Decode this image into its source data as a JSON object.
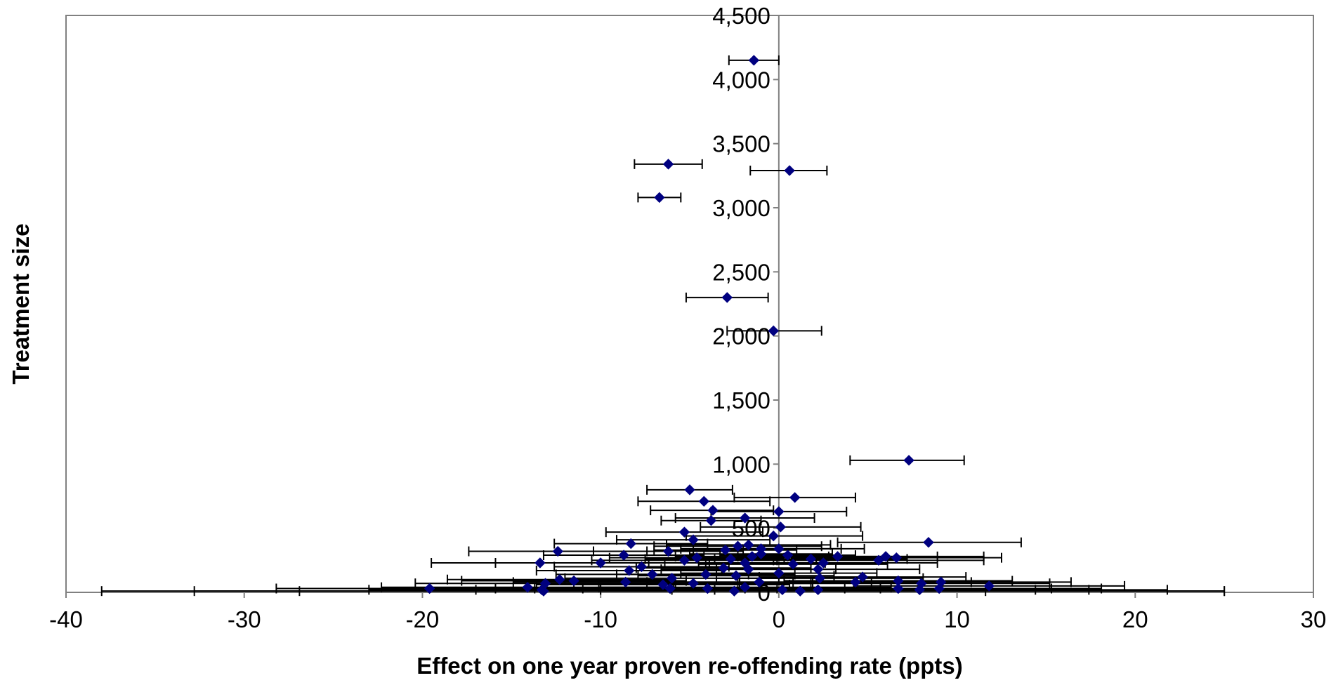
{
  "chart_data": {
    "type": "scatter",
    "xlabel": "Effect on one year proven re-offending rate (ppts)",
    "ylabel": "Treatment size",
    "xlim": [
      -40,
      30
    ],
    "ylim": [
      0,
      4500
    ],
    "x_ticks": [
      -40,
      -30,
      -20,
      -10,
      0,
      10,
      20,
      30
    ],
    "x_tick_labels": [
      "-40",
      "-30",
      "-20",
      "-10",
      "0",
      "10",
      "20",
      "30"
    ],
    "y_ticks": [
      0,
      500,
      1000,
      1500,
      2000,
      2500,
      3000,
      3500,
      4000,
      4500
    ],
    "y_tick_labels": [
      "0",
      "500",
      "1,000",
      "1,500",
      "2,000",
      "2,500",
      "3,000",
      "3,500",
      "4,000",
      "4,500"
    ],
    "grid": false,
    "legend": "none",
    "colors": {
      "marker": "#000080",
      "error_bar": "#000000",
      "axis": "#808080",
      "frame": "#808080"
    },
    "series": [
      {
        "marker": "diamond",
        "points": [
          {
            "x": -1.4,
            "y": 4150,
            "lo": -2.8,
            "hi": 0.0
          },
          {
            "x": -6.2,
            "y": 3340,
            "lo": -8.1,
            "hi": -4.3
          },
          {
            "x": 0.6,
            "y": 3290,
            "lo": -1.6,
            "hi": 2.7
          },
          {
            "x": -6.7,
            "y": 3080,
            "lo": -7.9,
            "hi": -5.5
          },
          {
            "x": -2.9,
            "y": 2300,
            "lo": -5.2,
            "hi": -0.6
          },
          {
            "x": -0.3,
            "y": 2040,
            "lo": -2.9,
            "hi": 2.4
          },
          {
            "x": 7.3,
            "y": 1030,
            "lo": 4.0,
            "hi": 10.4
          },
          {
            "x": -5.0,
            "y": 800,
            "lo": -7.4,
            "hi": -2.6
          },
          {
            "x": 0.9,
            "y": 740,
            "lo": -2.5,
            "hi": 4.3
          },
          {
            "x": -4.2,
            "y": 710,
            "lo": -7.9,
            "hi": -0.5
          },
          {
            "x": -3.7,
            "y": 640,
            "lo": -7.2,
            "hi": -0.3
          },
          {
            "x": 0.0,
            "y": 630,
            "lo": -3.8,
            "hi": 3.8
          },
          {
            "x": -1.9,
            "y": 580,
            "lo": -5.8,
            "hi": 2.0
          },
          {
            "x": -3.8,
            "y": 560,
            "lo": -6.6,
            "hi": -1.0
          },
          {
            "x": 0.1,
            "y": 510,
            "lo": -4.4,
            "hi": 4.6
          },
          {
            "x": -5.3,
            "y": 470,
            "lo": -9.7,
            "hi": -0.9
          },
          {
            "x": -0.3,
            "y": 440,
            "lo": -5.2,
            "hi": 4.7
          },
          {
            "x": -4.8,
            "y": 410,
            "lo": -9.1,
            "hi": -0.5
          },
          {
            "x": 8.4,
            "y": 390,
            "lo": 3.3,
            "hi": 13.6
          },
          {
            "x": -8.3,
            "y": 380,
            "lo": -12.6,
            "hi": -4.0
          },
          {
            "x": -1.7,
            "y": 370,
            "lo": -6.3,
            "hi": 2.9
          },
          {
            "x": -2.3,
            "y": 360,
            "lo": -7.0,
            "hi": 2.4
          },
          {
            "x": -1.0,
            "y": 340,
            "lo": -5.5,
            "hi": 3.5
          },
          {
            "x": 0.0,
            "y": 340,
            "lo": -4.8,
            "hi": 4.8
          },
          {
            "x": -3.0,
            "y": 330,
            "lo": -7.0,
            "hi": 1.0
          },
          {
            "x": -12.4,
            "y": 320,
            "lo": -17.4,
            "hi": -7.4
          },
          {
            "x": -6.2,
            "y": 320,
            "lo": -10.4,
            "hi": -2.0
          },
          {
            "x": -1.0,
            "y": 300,
            "lo": -5.0,
            "hi": 3.0
          },
          {
            "x": -8.7,
            "y": 290,
            "lo": -13.2,
            "hi": -4.2
          },
          {
            "x": 0.5,
            "y": 290,
            "lo": -3.3,
            "hi": 4.3
          },
          {
            "x": -1.5,
            "y": 280,
            "lo": -5.8,
            "hi": 2.8
          },
          {
            "x": 3.3,
            "y": 280,
            "lo": -2.3,
            "hi": 8.9
          },
          {
            "x": 6.0,
            "y": 280,
            "lo": 0.5,
            "hi": 11.5
          },
          {
            "x": 6.6,
            "y": 270,
            "lo": 0.7,
            "hi": 12.5
          },
          {
            "x": -4.6,
            "y": 270,
            "lo": -9.5,
            "hi": 0.3
          },
          {
            "x": 1.8,
            "y": 260,
            "lo": -3.6,
            "hi": 7.2
          },
          {
            "x": -2.7,
            "y": 260,
            "lo": -7.5,
            "hi": 2.1
          },
          {
            "x": 5.6,
            "y": 250,
            "lo": -0.3,
            "hi": 11.5
          },
          {
            "x": -5.3,
            "y": 250,
            "lo": -10.5,
            "hi": -0.1
          },
          {
            "x": -13.4,
            "y": 230,
            "lo": -19.5,
            "hi": -7.3
          },
          {
            "x": -10.0,
            "y": 230,
            "lo": -15.9,
            "hi": -4.1
          },
          {
            "x": -1.9,
            "y": 230,
            "lo": -6.4,
            "hi": 2.6
          },
          {
            "x": 2.5,
            "y": 230,
            "lo": -3.9,
            "hi": 8.9
          },
          {
            "x": 0.8,
            "y": 220,
            "lo": -4.5,
            "hi": 6.1
          },
          {
            "x": -7.7,
            "y": 200,
            "lo": -12.6,
            "hi": -2.8
          },
          {
            "x": -3.1,
            "y": 190,
            "lo": -8.0,
            "hi": 1.8
          },
          {
            "x": -1.7,
            "y": 180,
            "lo": -6.6,
            "hi": 3.2
          },
          {
            "x": 2.2,
            "y": 180,
            "lo": -3.5,
            "hi": 7.9
          },
          {
            "x": -8.4,
            "y": 170,
            "lo": -13.6,
            "hi": -3.2
          },
          {
            "x": 0.0,
            "y": 150,
            "lo": -5.5,
            "hi": 5.5
          },
          {
            "x": -7.1,
            "y": 140,
            "lo": -12.5,
            "hi": -1.7
          },
          {
            "x": -4.1,
            "y": 140,
            "lo": -9.1,
            "hi": 0.9
          },
          {
            "x": -2.4,
            "y": 130,
            "lo": -7.9,
            "hi": 3.1
          },
          {
            "x": 4.7,
            "y": 120,
            "lo": -1.1,
            "hi": 10.5
          },
          {
            "x": -6.0,
            "y": 110,
            "lo": -12.0,
            "hi": 0.0
          },
          {
            "x": 2.3,
            "y": 110,
            "lo": -3.5,
            "hi": 8.1
          },
          {
            "x": -12.3,
            "y": 100,
            "lo": -18.6,
            "hi": -6.0
          },
          {
            "x": -11.5,
            "y": 90,
            "lo": -17.8,
            "hi": -5.2
          },
          {
            "x": 6.7,
            "y": 90,
            "lo": 0.3,
            "hi": 13.1
          },
          {
            "x": -8.6,
            "y": 80,
            "lo": -14.9,
            "hi": -2.3
          },
          {
            "x": 4.3,
            "y": 80,
            "lo": -2.2,
            "hi": 10.8
          },
          {
            "x": -1.1,
            "y": 80,
            "lo": -7.4,
            "hi": 5.2
          },
          {
            "x": 9.1,
            "y": 80,
            "lo": 1.8,
            "hi": 16.4
          },
          {
            "x": -13.1,
            "y": 70,
            "lo": -20.4,
            "hi": -5.8
          },
          {
            "x": -4.8,
            "y": 70,
            "lo": -11.5,
            "hi": 1.9
          },
          {
            "x": 8.0,
            "y": 70,
            "lo": 0.8,
            "hi": 15.2
          },
          {
            "x": -6.5,
            "y": 60,
            "lo": -13.6,
            "hi": 0.6
          },
          {
            "x": 11.8,
            "y": 50,
            "lo": 4.2,
            "hi": 19.4
          },
          {
            "x": -14.1,
            "y": 40,
            "lo": -22.3,
            "hi": -5.9
          },
          {
            "x": -1.9,
            "y": 40,
            "lo": -10.1,
            "hi": 6.3
          },
          {
            "x": 6.7,
            "y": 30,
            "lo": -1.9,
            "hi": 15.3
          },
          {
            "x": -19.6,
            "y": 30,
            "lo": -28.2,
            "hi": -11.0
          },
          {
            "x": 9.0,
            "y": 30,
            "lo": -0.1,
            "hi": 18.1
          },
          {
            "x": -4.0,
            "y": 30,
            "lo": -13.7,
            "hi": 5.7
          },
          {
            "x": -6.1,
            "y": 30,
            "lo": -15.9,
            "hi": 3.7
          },
          {
            "x": 2.2,
            "y": 20,
            "lo": -10.0,
            "hi": 14.4
          },
          {
            "x": -13.3,
            "y": 20,
            "lo": -23.0,
            "hi": -3.6
          },
          {
            "x": 0.2,
            "y": 20,
            "lo": -17.0,
            "hi": 17.4
          },
          {
            "x": 7.9,
            "y": 20,
            "lo": -6.0,
            "hi": 21.8
          },
          {
            "x": -13.2,
            "y": 10,
            "lo": -38.0,
            "hi": 11.6
          },
          {
            "x": -2.5,
            "y": 10,
            "lo": -32.8,
            "hi": 25.0
          },
          {
            "x": 1.2,
            "y": 10,
            "lo": -26.9,
            "hi": 25.0
          }
        ]
      }
    ]
  }
}
